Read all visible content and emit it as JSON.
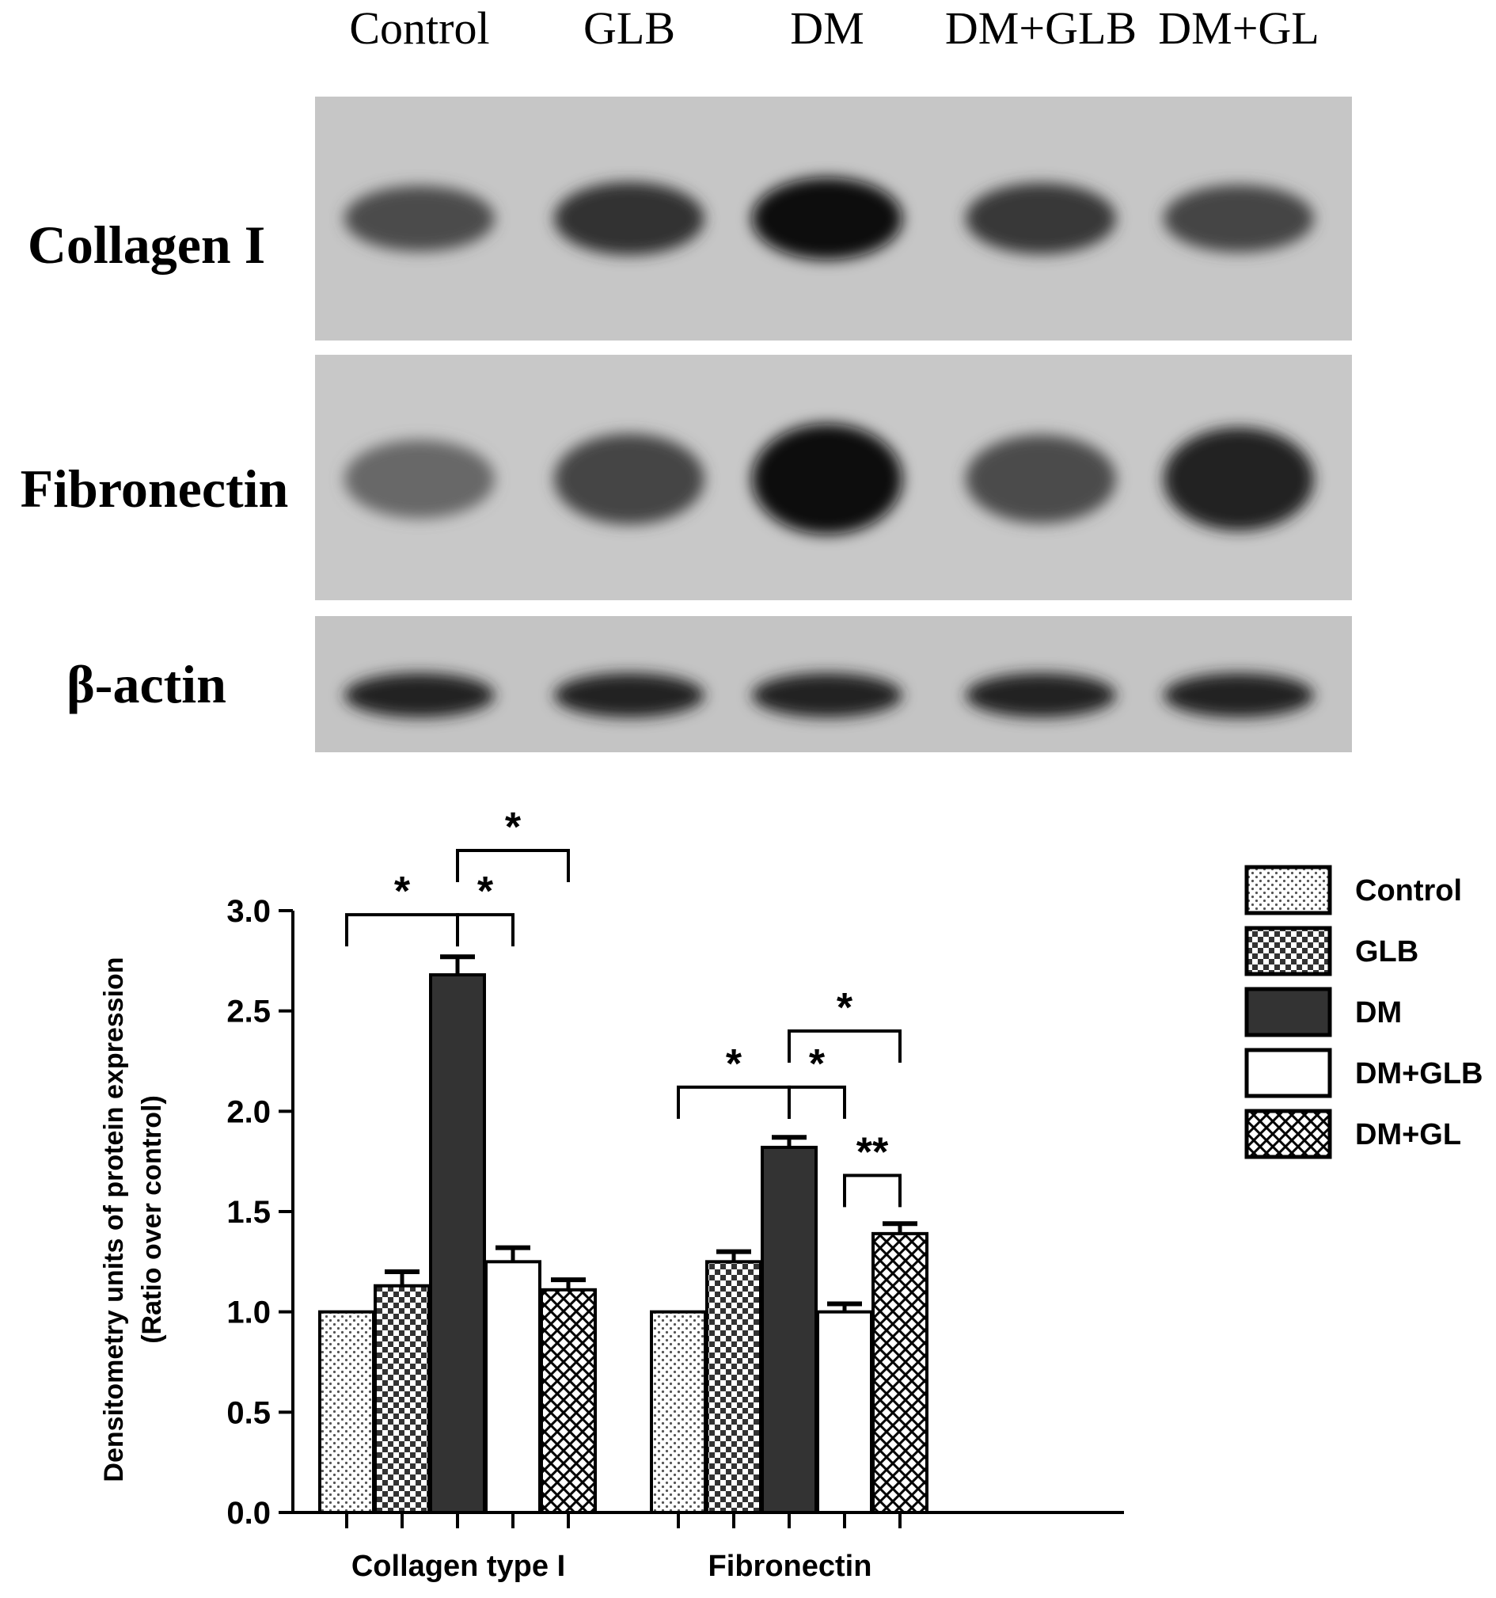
{
  "blot": {
    "lane_labels": [
      "Control",
      "GLB",
      "DM",
      "DM+GLB",
      "DM+GL"
    ],
    "rows": [
      {
        "label": "Collagen I",
        "intensity": [
          0.55,
          0.75,
          1.0,
          0.7,
          0.6
        ]
      },
      {
        "label": "Fibronectin",
        "intensity": [
          0.35,
          0.6,
          1.0,
          0.55,
          0.85
        ]
      },
      {
        "label": "β-actin",
        "intensity": [
          0.85,
          0.85,
          0.85,
          0.85,
          0.85
        ]
      }
    ]
  },
  "colors": {
    "control": "#d9d9d9",
    "glb": "#8c8c8c",
    "dm": "#333333",
    "dm_glb": "#ffffff",
    "dm_gl": "#ffffff",
    "axis": "#000000"
  },
  "chart_data": {
    "type": "bar",
    "categories": [
      "Collagen type I",
      "Fibronectin"
    ],
    "ylabel_line1": "Densitometry units of protein expression",
    "ylabel_line2": "(Ratio over control)",
    "ylim": [
      0,
      3.0
    ],
    "yticks": [
      "0.0",
      "0.5",
      "1.0",
      "1.5",
      "2.0",
      "2.5",
      "3.0"
    ],
    "legend_position": "right",
    "series": [
      {
        "name": "Control",
        "pattern": "dots",
        "values": [
          1.0,
          1.0
        ],
        "errors": [
          0.0,
          0.0
        ]
      },
      {
        "name": "GLB",
        "pattern": "checker",
        "values": [
          1.13,
          1.25
        ],
        "errors": [
          0.07,
          0.05
        ]
      },
      {
        "name": "DM",
        "pattern": "solid-dark",
        "values": [
          2.68,
          1.82
        ],
        "errors": [
          0.09,
          0.05
        ]
      },
      {
        "name": "DM+GLB",
        "pattern": "white",
        "values": [
          1.25,
          1.0
        ],
        "errors": [
          0.07,
          0.04
        ]
      },
      {
        "name": "DM+GL",
        "pattern": "crosshatch",
        "values": [
          1.11,
          1.39
        ],
        "errors": [
          0.05,
          0.05
        ]
      }
    ],
    "significance": [
      {
        "group": 0,
        "from": 0,
        "to": 2,
        "label": "*",
        "y": 2.98
      },
      {
        "group": 0,
        "from": 2,
        "to": 3,
        "label": "*",
        "y": 2.98
      },
      {
        "group": 0,
        "from": 2,
        "to": 4,
        "label": "*",
        "y": 3.3
      },
      {
        "group": 1,
        "from": 0,
        "to": 2,
        "label": "*",
        "y": 2.12
      },
      {
        "group": 1,
        "from": 2,
        "to": 3,
        "label": "*",
        "y": 2.12
      },
      {
        "group": 1,
        "from": 2,
        "to": 4,
        "label": "*",
        "y": 2.4
      },
      {
        "group": 1,
        "from": 3,
        "to": 4,
        "label": "**",
        "y": 1.68
      }
    ]
  }
}
